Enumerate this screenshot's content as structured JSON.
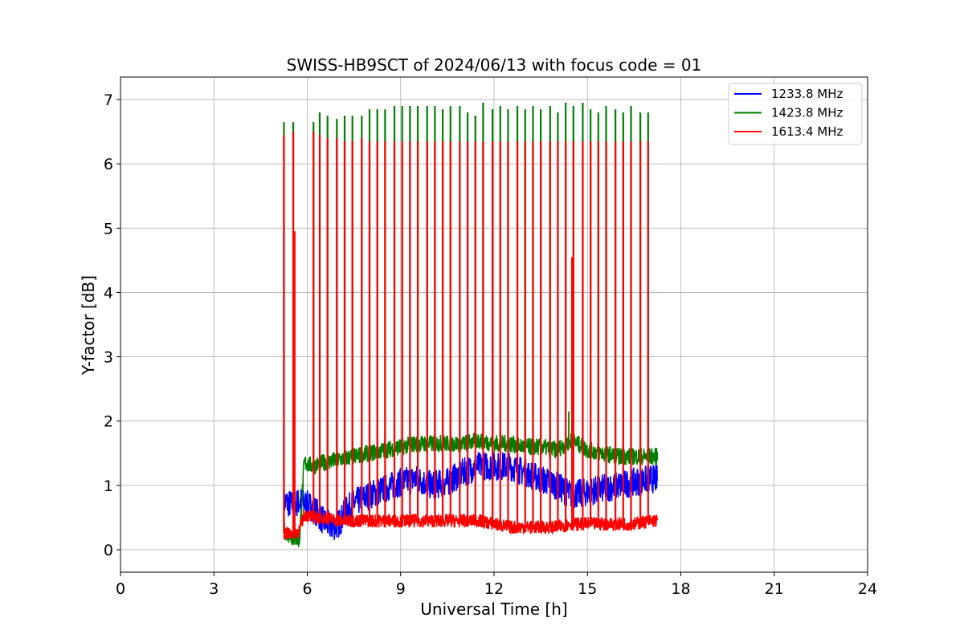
{
  "chart_data": {
    "type": "line",
    "title": "SWISS-HB9SCT of 2024/06/13 with focus code = 01",
    "xlabel": "Universal Time [h]",
    "ylabel": "Y-factor [dB]",
    "xlim": [
      0,
      24
    ],
    "ylim": [
      -0.35,
      7.35
    ],
    "xticks": [
      0,
      3,
      6,
      9,
      12,
      15,
      18,
      21,
      24
    ],
    "yticks": [
      0,
      1,
      2,
      3,
      4,
      5,
      6,
      7
    ],
    "grid": true,
    "legend_position": "top-right",
    "data_span_h": [
      5.25,
      17.25
    ],
    "series": [
      {
        "name": "1233.8 MHz",
        "color": "#0000ff",
        "baseline": [
          [
            5.25,
            0.75
          ],
          [
            5.5,
            0.7
          ],
          [
            5.8,
            0.75
          ],
          [
            6.2,
            0.65
          ],
          [
            6.5,
            0.45
          ],
          [
            6.8,
            0.35
          ],
          [
            7.0,
            0.4
          ],
          [
            7.3,
            0.65
          ],
          [
            7.6,
            0.75
          ],
          [
            8.0,
            0.85
          ],
          [
            8.5,
            0.95
          ],
          [
            9.0,
            1.05
          ],
          [
            9.5,
            1.1
          ],
          [
            10.0,
            1.0
          ],
          [
            10.5,
            1.05
          ],
          [
            11.0,
            1.2
          ],
          [
            11.5,
            1.3
          ],
          [
            12.0,
            1.3
          ],
          [
            12.5,
            1.3
          ],
          [
            13.0,
            1.2
          ],
          [
            13.5,
            1.1
          ],
          [
            14.0,
            1.0
          ],
          [
            14.5,
            0.85
          ],
          [
            15.0,
            0.9
          ],
          [
            15.5,
            0.95
          ],
          [
            16.0,
            1.0
          ],
          [
            16.5,
            1.05
          ],
          [
            17.0,
            1.1
          ],
          [
            17.25,
            1.1
          ]
        ]
      },
      {
        "name": "1423.8 MHz",
        "color": "#008000",
        "baseline": [
          [
            5.25,
            0.3
          ],
          [
            5.5,
            0.2
          ],
          [
            5.75,
            0.15
          ],
          [
            5.9,
            1.35
          ],
          [
            6.2,
            1.3
          ],
          [
            6.5,
            1.35
          ],
          [
            7.0,
            1.4
          ],
          [
            7.5,
            1.45
          ],
          [
            8.0,
            1.5
          ],
          [
            8.5,
            1.55
          ],
          [
            9.0,
            1.6
          ],
          [
            9.5,
            1.65
          ],
          [
            10.0,
            1.65
          ],
          [
            10.5,
            1.65
          ],
          [
            11.0,
            1.65
          ],
          [
            11.5,
            1.7
          ],
          [
            12.0,
            1.65
          ],
          [
            12.5,
            1.65
          ],
          [
            13.0,
            1.6
          ],
          [
            13.5,
            1.6
          ],
          [
            14.0,
            1.55
          ],
          [
            14.5,
            1.7
          ],
          [
            15.0,
            1.55
          ],
          [
            15.5,
            1.5
          ],
          [
            16.0,
            1.45
          ],
          [
            16.5,
            1.45
          ],
          [
            17.0,
            1.45
          ],
          [
            17.25,
            1.45
          ]
        ],
        "peaks": [
          6.65,
          6.65,
          6.65,
          6.8,
          6.75,
          6.7,
          6.75,
          6.75,
          6.75,
          6.85,
          6.85,
          6.85,
          6.9,
          6.9,
          6.9,
          6.9,
          6.9,
          6.9,
          6.85,
          6.9,
          6.9,
          6.8,
          6.75,
          6.95,
          6.85,
          6.9,
          6.85,
          6.9,
          6.85,
          6.9,
          6.85,
          6.9,
          6.8,
          6.95,
          6.9,
          6.95,
          6.85,
          6.8,
          6.9,
          6.85,
          6.8,
          6.9,
          6.8,
          6.8
        ],
        "spikes": [
          [
            14.4,
            2.15
          ]
        ]
      },
      {
        "name": "1613.4 MHz",
        "color": "#ff0000",
        "baseline": [
          [
            5.25,
            0.25
          ],
          [
            5.5,
            0.25
          ],
          [
            5.75,
            0.3
          ],
          [
            5.9,
            0.55
          ],
          [
            6.2,
            0.5
          ],
          [
            6.5,
            0.5
          ],
          [
            7.0,
            0.45
          ],
          [
            7.5,
            0.45
          ],
          [
            8.0,
            0.45
          ],
          [
            8.5,
            0.45
          ],
          [
            9.0,
            0.45
          ],
          [
            9.5,
            0.45
          ],
          [
            10.0,
            0.45
          ],
          [
            10.5,
            0.45
          ],
          [
            11.0,
            0.45
          ],
          [
            11.5,
            0.45
          ],
          [
            12.0,
            0.4
          ],
          [
            12.5,
            0.35
          ],
          [
            13.0,
            0.35
          ],
          [
            13.5,
            0.35
          ],
          [
            14.0,
            0.35
          ],
          [
            14.5,
            0.4
          ],
          [
            15.0,
            0.4
          ],
          [
            15.5,
            0.4
          ],
          [
            16.0,
            0.4
          ],
          [
            16.5,
            0.4
          ],
          [
            17.0,
            0.45
          ],
          [
            17.25,
            0.45
          ]
        ],
        "peaks": [
          6.45,
          6.5,
          6.5,
          6.45,
          6.4,
          6.4,
          6.35,
          6.35,
          6.4,
          6.35,
          6.35,
          6.35,
          6.35,
          6.35,
          6.35,
          6.35,
          6.35,
          6.35,
          6.35,
          6.35,
          6.35,
          6.35,
          6.35,
          6.35,
          6.35,
          6.35,
          6.35,
          6.35,
          6.35,
          6.35,
          6.35,
          6.35,
          6.35,
          6.35,
          6.35,
          6.35,
          6.35,
          6.35,
          6.35,
          6.35,
          6.35,
          6.35,
          6.35,
          6.35
        ],
        "spikes": [
          [
            5.6,
            4.95
          ],
          [
            14.5,
            4.55
          ]
        ]
      }
    ],
    "peak_times": [
      5.25,
      5.55,
      6.2,
      6.4,
      6.65,
      6.95,
      7.2,
      7.45,
      7.75,
      8.0,
      8.25,
      8.5,
      8.8,
      9.05,
      9.3,
      9.55,
      9.85,
      10.1,
      10.35,
      10.6,
      10.9,
      11.15,
      11.4,
      11.65,
      11.95,
      12.2,
      12.45,
      12.75,
      13.0,
      13.25,
      13.5,
      13.8,
      14.05,
      14.3,
      14.55,
      14.85,
      15.1,
      15.35,
      15.6,
      15.9,
      16.15,
      16.4,
      16.7,
      16.95
    ]
  }
}
